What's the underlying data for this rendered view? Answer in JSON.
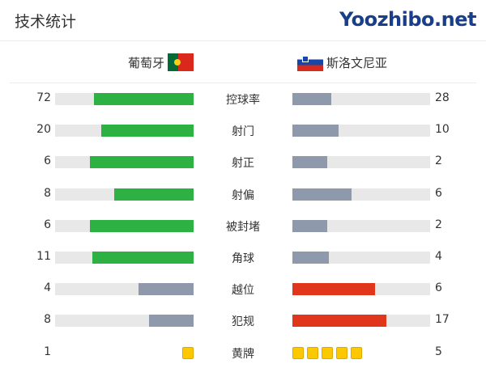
{
  "title": "技术统计",
  "teams": {
    "home": {
      "name": "葡萄牙",
      "flag": "portugal-flag"
    },
    "away": {
      "name": "斯洛文尼亚",
      "flag": "slovenia-flag"
    }
  },
  "colors": {
    "win": "#2db143",
    "lose": "#8e9aab",
    "bad": "#e0371c",
    "track": "#e8e8e8",
    "card": "#fcc800"
  },
  "stats": [
    {
      "label": "控球率",
      "home": "72",
      "away": "28",
      "hv": 72,
      "av": 28,
      "type": "good"
    },
    {
      "label": "射门",
      "home": "20",
      "away": "10",
      "hv": 20,
      "av": 10,
      "type": "good"
    },
    {
      "label": "射正",
      "home": "6",
      "away": "2",
      "hv": 6,
      "av": 2,
      "type": "good"
    },
    {
      "label": "射偏",
      "home": "8",
      "away": "6",
      "hv": 8,
      "av": 6,
      "type": "good"
    },
    {
      "label": "被封堵",
      "home": "6",
      "away": "2",
      "hv": 6,
      "av": 2,
      "type": "good"
    },
    {
      "label": "角球",
      "home": "11",
      "away": "4",
      "hv": 11,
      "av": 4,
      "type": "good"
    },
    {
      "label": "越位",
      "home": "4",
      "away": "6",
      "hv": 4,
      "av": 6,
      "type": "bad"
    },
    {
      "label": "犯规",
      "home": "8",
      "away": "17",
      "hv": 8,
      "av": 17,
      "type": "bad"
    },
    {
      "label": "黄牌",
      "home": "1",
      "away": "5",
      "hv": 1,
      "av": 5,
      "type": "cards"
    }
  ],
  "watermark": "Yoozhibo.net"
}
